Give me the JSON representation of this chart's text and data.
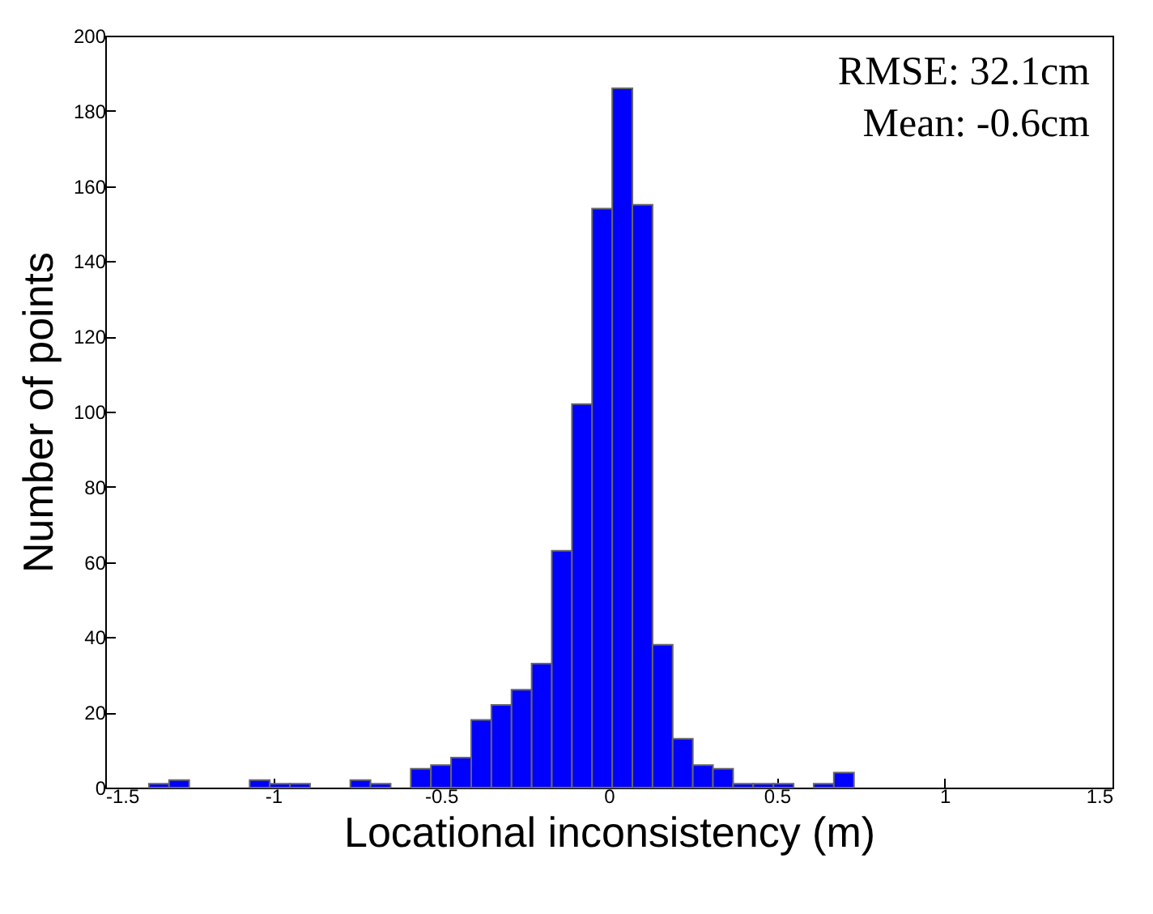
{
  "chart_data": {
    "type": "histogram",
    "xlabel": "Locational inconsistency (m)",
    "ylabel": "Number of points",
    "annotations": [
      "RMSE: 32.1cm",
      "Mean: -0.6cm"
    ],
    "bins": [
      -1.37,
      -1.31,
      -1.25,
      -1.19,
      -1.13,
      -1.07,
      -1.01,
      -0.95,
      -0.89,
      -0.83,
      -0.77,
      -0.71,
      -0.65,
      -0.59,
      -0.53,
      -0.47,
      -0.41,
      -0.35,
      -0.29,
      -0.23,
      -0.17,
      -0.11,
      -0.05,
      0.01,
      0.07,
      0.13,
      0.19,
      0.25,
      0.31,
      0.37,
      0.43,
      0.49,
      0.55,
      0.61,
      0.67,
      0.73
    ],
    "values": [
      1,
      2,
      0,
      0,
      0,
      2,
      1,
      1,
      0,
      0,
      2,
      1,
      0,
      5,
      6,
      8,
      18,
      22,
      26,
      33,
      63,
      102,
      154,
      186,
      155,
      38,
      13,
      6,
      5,
      1,
      1,
      1,
      0,
      1,
      4
    ],
    "color": "#0000ff",
    "xlim": [
      -1.5,
      1.5
    ],
    "xticks": [
      -1.5,
      -1,
      -0.5,
      0,
      0.5,
      1,
      1.5
    ],
    "ylim": [
      0,
      200
    ],
    "yticks": [
      0,
      20,
      40,
      60,
      80,
      100,
      120,
      140,
      160,
      180,
      200
    ],
    "grid": false
  }
}
